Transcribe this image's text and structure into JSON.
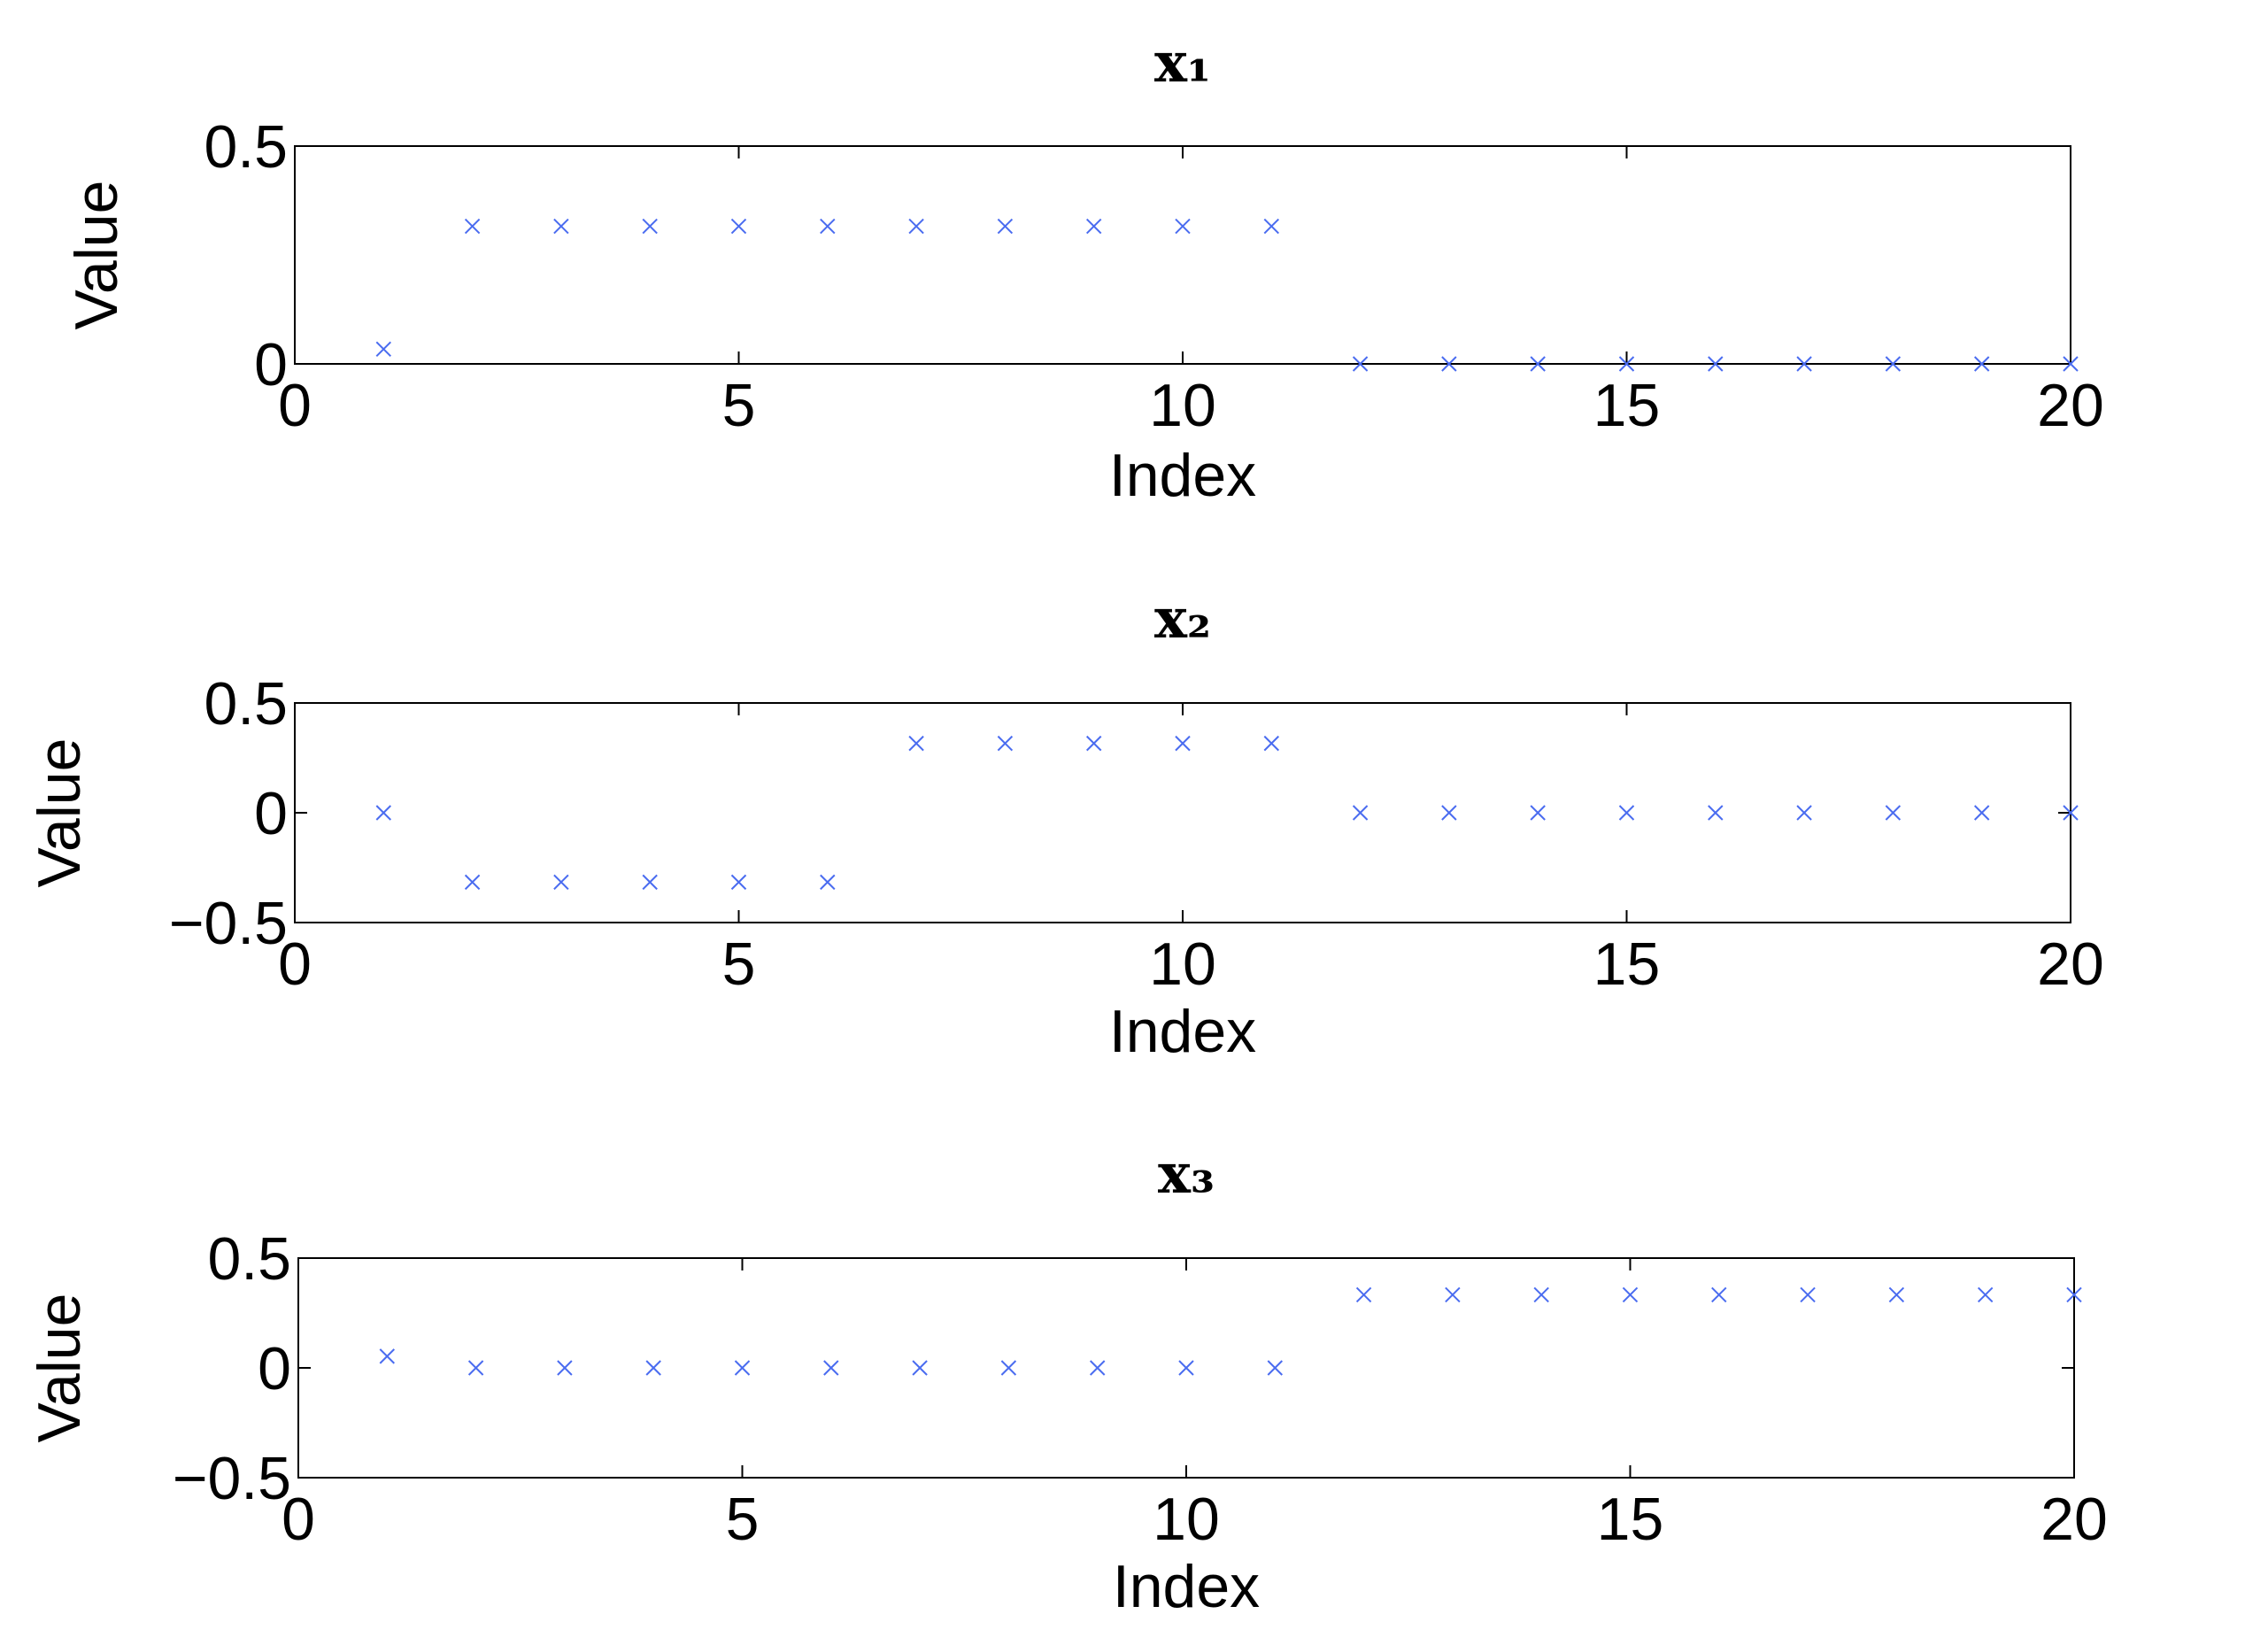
{
  "chart_data": [
    {
      "type": "scatter",
      "title": "x₁",
      "xlabel": "Index",
      "ylabel": "Value",
      "color": "#4a6cf0",
      "marker": "x",
      "x": [
        1,
        2,
        3,
        4,
        5,
        6,
        7,
        8,
        9,
        10,
        11,
        12,
        13,
        14,
        15,
        16,
        17,
        18,
        19,
        20
      ],
      "values": [
        0.034,
        0.316,
        0.316,
        0.316,
        0.316,
        0.316,
        0.316,
        0.316,
        0.316,
        0.316,
        0.316,
        0,
        0,
        0,
        0,
        0,
        0,
        0,
        0,
        0
      ],
      "xlim": [
        0,
        20
      ],
      "xticks": [
        0,
        5,
        10,
        15,
        20
      ],
      "ylim": [
        0,
        0.5
      ],
      "yticks": [
        0,
        0.5
      ]
    },
    {
      "type": "scatter",
      "title": "x₂",
      "xlabel": "Index",
      "ylabel": "Value",
      "color": "#4a6cf0",
      "marker": "x",
      "x": [
        1,
        2,
        3,
        4,
        5,
        6,
        7,
        8,
        9,
        10,
        11,
        12,
        13,
        14,
        15,
        16,
        17,
        18,
        19,
        20
      ],
      "values": [
        0,
        -0.316,
        -0.316,
        -0.316,
        -0.316,
        -0.316,
        0.316,
        0.316,
        0.316,
        0.316,
        0.316,
        0,
        0,
        0,
        0,
        0,
        0,
        0,
        0,
        0
      ],
      "xlim": [
        0,
        20
      ],
      "xticks": [
        0,
        5,
        10,
        15,
        20
      ],
      "ylim": [
        -0.5,
        0.5
      ],
      "yticks": [
        {
          "value": -0.5,
          "label": "−0.5"
        },
        0,
        0.5
      ]
    },
    {
      "type": "scatter",
      "title": "x₃",
      "xlabel": "Index",
      "ylabel": "Value",
      "color": "#4a6cf0",
      "marker": "x",
      "x": [
        1,
        2,
        3,
        4,
        5,
        6,
        7,
        8,
        9,
        10,
        11,
        12,
        13,
        14,
        15,
        16,
        17,
        18,
        19,
        20
      ],
      "values": [
        0.053,
        0,
        0,
        0,
        0,
        0,
        0,
        0,
        0,
        0,
        0,
        0.333,
        0.333,
        0.333,
        0.333,
        0.333,
        0.333,
        0.333,
        0.333,
        0.333
      ],
      "xlim": [
        0,
        20
      ],
      "xticks": [
        0,
        5,
        10,
        15,
        20
      ],
      "ylim": [
        -0.5,
        0.5
      ],
      "yticks": [
        {
          "value": -0.5,
          "label": "−0.5"
        },
        0,
        0.5
      ]
    }
  ]
}
